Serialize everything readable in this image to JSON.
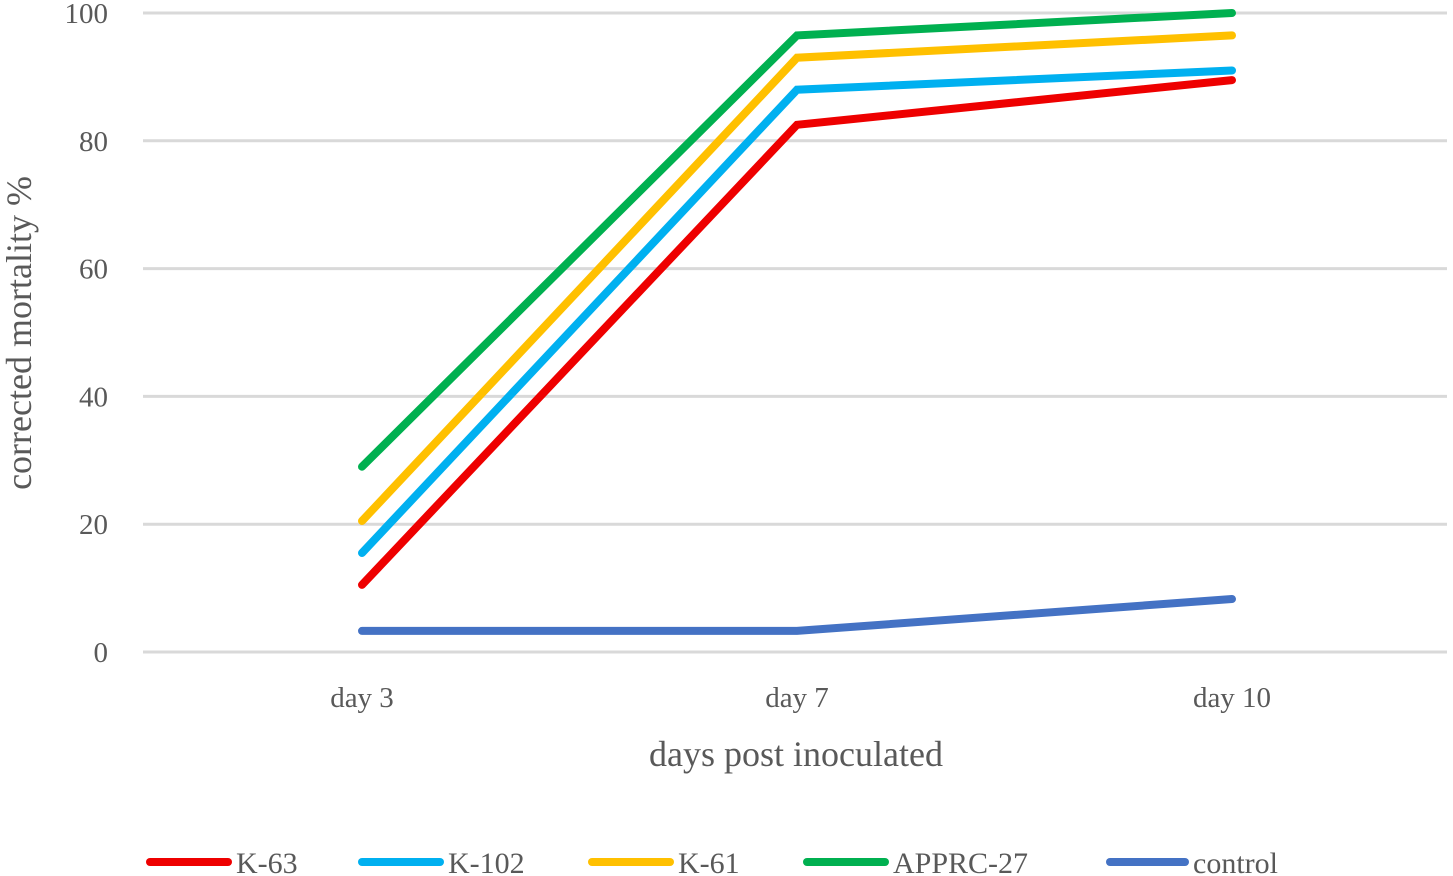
{
  "chart_data": {
    "type": "line",
    "title": "",
    "xlabel": "days post inoculated",
    "ylabel": "corrected mortality %",
    "categories": [
      "day 3",
      "day 7",
      "day 10"
    ],
    "ylim": [
      0,
      100
    ],
    "yticks": [
      0,
      20,
      40,
      60,
      80,
      100
    ],
    "grid": true,
    "legend_position": "bottom",
    "series": [
      {
        "name": "K-63",
        "color": "#ee0000",
        "values": [
          10.5,
          82.5,
          89.5
        ]
      },
      {
        "name": "K-102",
        "color": "#00b0f0",
        "values": [
          15.5,
          88,
          91
        ]
      },
      {
        "name": "K-61",
        "color": "#ffc000",
        "values": [
          20.5,
          93,
          96.5
        ]
      },
      {
        "name": "APPRC-27",
        "color": "#00b050",
        "values": [
          29,
          96.5,
          100
        ]
      },
      {
        "name": "control",
        "color": "#4472c4",
        "values": [
          3.3,
          3.3,
          8.3
        ]
      }
    ]
  }
}
